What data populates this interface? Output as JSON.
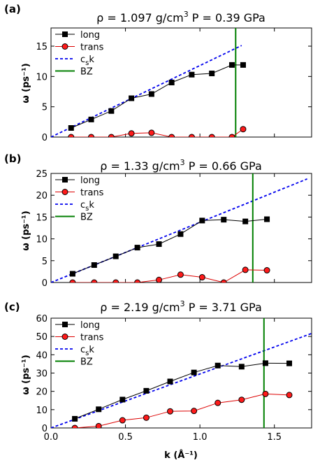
{
  "chart_data": [
    {
      "type": "line",
      "panel_label": "(a)",
      "title_parts": [
        "ρ = 1.097 g/cm",
        "3",
        " P = 0.39 GPa"
      ],
      "ylabel": "ω (ps⁻¹)",
      "xlabel": "",
      "xlim": [
        0.0,
        1.75
      ],
      "ylim": [
        0,
        18
      ],
      "xticks": [
        0.0,
        0.5,
        1.0,
        1.5
      ],
      "xtick_labels": [
        "",
        "",
        "",
        ""
      ],
      "yticks": [
        0,
        5,
        10,
        15
      ],
      "ytick_labels": [
        "0",
        "5",
        "10",
        "15"
      ],
      "legend": [
        "long",
        "trans",
        "c_s k",
        "BZ"
      ],
      "legend_position": "upper-left",
      "series": [
        {
          "name": "long",
          "marker": "square",
          "color": "#000000",
          "x": [
            0.135,
            0.27,
            0.405,
            0.54,
            0.675,
            0.81,
            0.945,
            1.08,
            1.215,
            1.29
          ],
          "y": [
            1.5,
            2.9,
            4.3,
            6.4,
            7.1,
            9.0,
            10.3,
            10.5,
            11.9,
            11.9
          ]
        },
        {
          "name": "trans",
          "marker": "circle",
          "color": "#dd0000",
          "x": [
            0.135,
            0.27,
            0.405,
            0.54,
            0.675,
            0.81,
            0.945,
            1.08,
            1.215,
            1.29
          ],
          "y": [
            0.0,
            0.0,
            0.0,
            0.6,
            0.7,
            0.0,
            0.0,
            0.0,
            0.0,
            1.3
          ]
        }
      ],
      "sound_line": {
        "name": "c_s k",
        "slope": 11.8,
        "x_end": 1.28,
        "color": "#0000ee"
      },
      "bz": {
        "name": "BZ",
        "x": 1.24,
        "color": "#007f00"
      }
    },
    {
      "type": "line",
      "panel_label": "(b)",
      "title_parts": [
        "ρ = 1.33 g/cm",
        "3",
        " P = 0.66 GPa"
      ],
      "ylabel": "ω (ps⁻¹)",
      "xlabel": "",
      "xlim": [
        0.0,
        1.75
      ],
      "ylim": [
        0,
        25
      ],
      "xticks": [
        0.0,
        0.5,
        1.0,
        1.5
      ],
      "xtick_labels": [
        "",
        "",
        "",
        ""
      ],
      "yticks": [
        0,
        5,
        10,
        15,
        20,
        25
      ],
      "ytick_labels": [
        "0",
        "5",
        "10",
        "15",
        "20",
        "25"
      ],
      "legend": [
        "long",
        "trans",
        "c_s k",
        "BZ"
      ],
      "legend_position": "upper-left",
      "series": [
        {
          "name": "long",
          "marker": "square",
          "color": "#000000",
          "x": [
            0.145,
            0.29,
            0.435,
            0.58,
            0.725,
            0.87,
            1.015,
            1.16,
            1.305,
            1.45
          ],
          "y": [
            2.0,
            4.0,
            6.0,
            8.0,
            8.8,
            11.1,
            14.2,
            14.4,
            14.0,
            14.5
          ]
        },
        {
          "name": "trans",
          "marker": "circle",
          "color": "#dd0000",
          "x": [
            0.145,
            0.29,
            0.435,
            0.58,
            0.725,
            0.87,
            1.015,
            1.16,
            1.305,
            1.45
          ],
          "y": [
            0.0,
            0.0,
            0.0,
            0.0,
            0.6,
            1.8,
            1.2,
            0.0,
            2.9,
            2.8
          ]
        }
      ],
      "sound_line": {
        "name": "c_s k",
        "slope": 13.8,
        "x_end": 1.72,
        "color": "#0000ee"
      },
      "bz": {
        "name": "BZ",
        "x": 1.355,
        "color": "#007f00"
      }
    },
    {
      "type": "line",
      "panel_label": "(c)",
      "title_parts": [
        "ρ = 2.19 g/cm",
        "3",
        " P = 3.71 GPa"
      ],
      "ylabel": "ω (ps⁻¹)",
      "xlabel": "k (Å⁻¹)",
      "xlim": [
        0.0,
        1.75
      ],
      "ylim": [
        0,
        60
      ],
      "xticks": [
        0.0,
        0.5,
        1.0,
        1.5
      ],
      "xtick_labels": [
        "0.0",
        "0.5",
        "1.0",
        "1.5"
      ],
      "yticks": [
        0,
        10,
        20,
        30,
        40,
        50,
        60
      ],
      "ytick_labels": [
        "0",
        "10",
        "20",
        "30",
        "40",
        "50",
        "60"
      ],
      "legend": [
        "long",
        "trans",
        "c_s k",
        "BZ"
      ],
      "legend_position": "upper-left",
      "series": [
        {
          "name": "long",
          "marker": "square",
          "color": "#000000",
          "x": [
            0.16,
            0.32,
            0.48,
            0.64,
            0.8,
            0.96,
            1.12,
            1.28,
            1.44,
            1.6
          ],
          "y": [
            5.0,
            10.2,
            15.5,
            20.3,
            25.4,
            30.3,
            34.1,
            33.5,
            35.4,
            35.3
          ]
        },
        {
          "name": "trans",
          "marker": "circle",
          "color": "#dd0000",
          "x": [
            0.16,
            0.32,
            0.48,
            0.64,
            0.8,
            0.96,
            1.12,
            1.28,
            1.44,
            1.6
          ],
          "y": [
            0.0,
            1.0,
            4.2,
            5.6,
            9.1,
            9.3,
            13.7,
            15.4,
            18.6,
            18.0
          ]
        },
        {
          "name": "c_s k",
          "marker": "none",
          "color": "#0000ee",
          "x": [],
          "y": []
        }
      ],
      "sound_line": {
        "name": "c_s k",
        "slope": 29.5,
        "x_end": 1.75,
        "color": "#0000ee"
      },
      "bz": {
        "name": "BZ",
        "x": 1.43,
        "color": "#007f00"
      }
    }
  ]
}
